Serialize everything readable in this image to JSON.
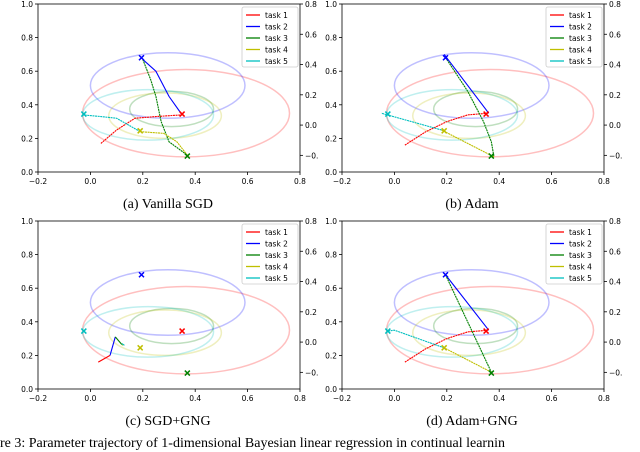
{
  "captions": [
    "(a) Vanilla SGD",
    "(b) Adam",
    "(c) SGD+GNG",
    "(d) Adam+GNG"
  ],
  "figure_caption": "gure 3: Parameter trajectory of 1-dimensional Bayesian linear regression in continual learnin",
  "chart_data": {
    "type": "line",
    "xlim": [
      -0.2,
      0.8
    ],
    "ylim": [
      0,
      1
    ],
    "y2lim": [
      -0.31,
      0.8
    ],
    "xticks": [
      "−0.2",
      "0.0",
      "0.2",
      "0.4",
      "0.6",
      "0.8"
    ],
    "yticks": [
      "0.0",
      "0.2",
      "0.4",
      "0.6",
      "0.8",
      "1.0"
    ],
    "y2ticks": [
      "−0.",
      "0.0",
      "0.2",
      "0.4",
      "0.6",
      "0.8"
    ],
    "legend": [
      "task 1",
      "task 2",
      "task 3",
      "task 4",
      "task 5"
    ],
    "legend_position": "top-right",
    "colors": [
      "#ff0000",
      "#0000ff",
      "#008000",
      "#bfbf00",
      "#00bfbf"
    ],
    "optima": [
      [
        0.35,
        0.345
      ],
      [
        0.195,
        0.68
      ],
      [
        0.37,
        0.095
      ],
      [
        0.19,
        0.245
      ],
      [
        -0.025,
        0.345
      ]
    ],
    "ellipses": [
      {
        "task": "task 1",
        "cx": 0.365,
        "cy": 0.35,
        "rx": 0.395,
        "ry": 0.26
      },
      {
        "task": "task 2",
        "cx": 0.295,
        "cy": 0.515,
        "rx": 0.295,
        "ry": 0.195
      },
      {
        "task": "task 3",
        "cx": 0.31,
        "cy": 0.375,
        "rx": 0.16,
        "ry": 0.105
      },
      {
        "task": "task 4",
        "cx": 0.285,
        "cy": 0.335,
        "rx": 0.215,
        "ry": 0.135
      },
      {
        "task": "task 5",
        "cx": 0.22,
        "cy": 0.34,
        "rx": 0.25,
        "ry": 0.15
      }
    ],
    "panels": [
      {
        "title": "(a) Vanilla SGD",
        "series": [
          [
            [
              0.04,
              0.17
            ],
            [
              0.1,
              0.25
            ],
            [
              0.17,
              0.32
            ],
            [
              0.25,
              0.33
            ],
            [
              0.35,
              0.34
            ]
          ],
          [
            [
              0.35,
              0.34
            ],
            [
              0.3,
              0.45
            ],
            [
              0.25,
              0.6
            ],
            [
              0.2,
              0.67
            ]
          ],
          [
            [
              0.2,
              0.67
            ],
            [
              0.23,
              0.55
            ],
            [
              0.25,
              0.45
            ],
            [
              0.27,
              0.3
            ],
            [
              0.3,
              0.18
            ],
            [
              0.37,
              0.1
            ]
          ],
          [
            [
              0.37,
              0.1
            ],
            [
              0.33,
              0.18
            ],
            [
              0.28,
              0.23
            ],
            [
              0.19,
              0.24
            ]
          ],
          [
            [
              0.19,
              0.24
            ],
            [
              0.1,
              0.32
            ],
            [
              0.04,
              0.33
            ],
            [
              -0.03,
              0.34
            ]
          ]
        ]
      },
      {
        "title": "(b) Adam",
        "series": [
          [
            [
              0.04,
              0.16
            ],
            [
              0.12,
              0.24
            ],
            [
              0.2,
              0.3
            ],
            [
              0.28,
              0.34
            ],
            [
              0.36,
              0.35
            ]
          ],
          [
            [
              0.36,
              0.35
            ],
            [
              0.19,
              0.7
            ]
          ],
          [
            [
              0.2,
              0.67
            ],
            [
              0.28,
              0.48
            ],
            [
              0.34,
              0.3
            ],
            [
              0.37,
              0.18
            ],
            [
              0.38,
              0.09
            ]
          ],
          [
            [
              0.38,
              0.09
            ],
            [
              0.18,
              0.25
            ]
          ],
          [
            [
              0.18,
              0.25
            ],
            [
              -0.05,
              0.35
            ]
          ]
        ]
      },
      {
        "title": "(c) SGD+GNG",
        "series": [
          [
            [
              0.03,
              0.16
            ],
            [
              0.075,
              0.2
            ]
          ],
          [
            [
              0.075,
              0.2
            ],
            [
              0.095,
              0.31
            ]
          ],
          [
            [
              0.095,
              0.31
            ],
            [
              0.12,
              0.265
            ]
          ],
          [
            [
              0.12,
              0.265
            ],
            [
              0.125,
              0.26
            ]
          ],
          [
            [
              0.12,
              0.27
            ],
            [
              0.13,
              0.26
            ]
          ]
        ]
      },
      {
        "title": "(d) Adam+GNG",
        "series": [
          [
            [
              0.04,
              0.16
            ],
            [
              0.12,
              0.24
            ],
            [
              0.2,
              0.3
            ],
            [
              0.28,
              0.34
            ],
            [
              0.36,
              0.35
            ]
          ],
          [
            [
              0.36,
              0.35
            ],
            [
              0.195,
              0.68
            ]
          ],
          [
            [
              0.195,
              0.68
            ],
            [
              0.37,
              0.1
            ]
          ],
          [
            [
              0.37,
              0.1
            ],
            [
              0.19,
              0.245
            ]
          ],
          [
            [
              0.19,
              0.245
            ],
            [
              0.0,
              0.35
            ],
            [
              -0.025,
              0.345
            ]
          ]
        ]
      }
    ]
  }
}
